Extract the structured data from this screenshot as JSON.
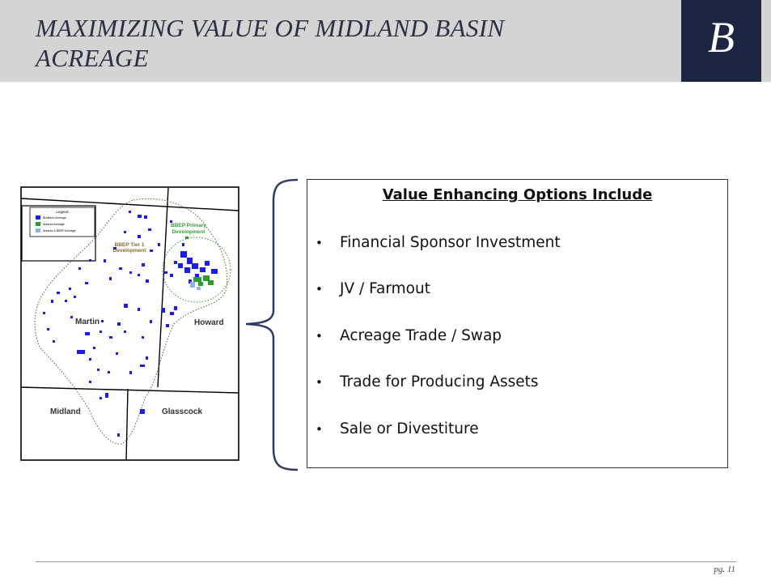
{
  "slide": {
    "title": "MAXIMIZING VALUE OF MIDLAND BASIN\nACREAGE",
    "logo_letter": "B",
    "page_number": "pg. 11"
  },
  "map": {
    "legend": {
      "title": "Legend",
      "items": [
        {
          "label": "Breitburn Acreage",
          "color": "#1a1aff"
        },
        {
          "label": "Antares Acreage",
          "color": "#2e9b2e"
        },
        {
          "label": "Antares & BBEP Acreage",
          "color": "#8ab4f0"
        }
      ]
    },
    "regions": {
      "tier1": "BBEP Tier 1\nDevelopment",
      "primary": "BBEP Primary\nDevelopment"
    },
    "counties": {
      "martin": "Martin",
      "howard": "Howard",
      "midland": "Midland",
      "glasscock": "Glasscock"
    }
  },
  "options": {
    "heading": "Value Enhancing Options Include",
    "items": [
      "Financial Sponsor Investment",
      "JV / Farmout",
      "Acreage Trade / Swap",
      "Trade for Producing Assets",
      "Sale or Divestiture"
    ]
  }
}
